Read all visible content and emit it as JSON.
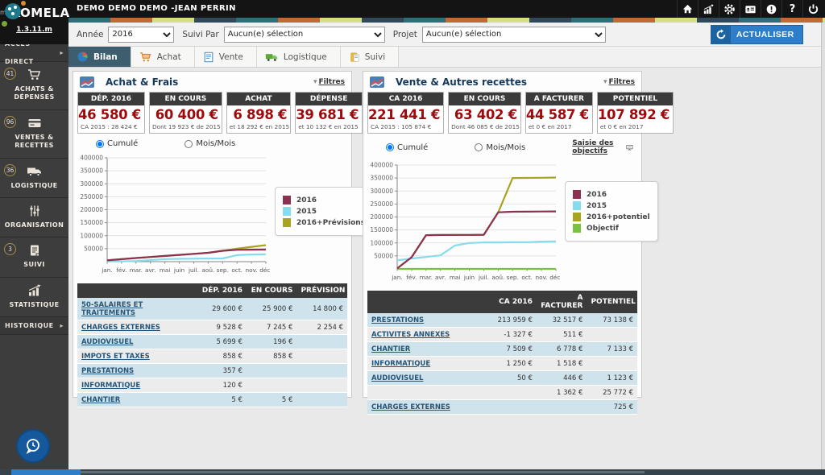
{
  "topbar": {
    "title": "DEMO DEMO DEMO -JEAN PERRIN",
    "icons": [
      "home",
      "stats",
      "settings",
      "account-card",
      "alerts",
      "help",
      "power"
    ]
  },
  "branding": {
    "app_prefix": "my",
    "app_name": "KOMELA",
    "version": "1.3.11.m"
  },
  "sidebar": {
    "access_direct": "ACCÈS DIRECT",
    "historique": "HISTORIQUE",
    "items": [
      {
        "badge": "41",
        "icon": "cart-icon",
        "label": "ACHATS &\nDÉPENSES"
      },
      {
        "badge": "96",
        "icon": "card-icon",
        "label": "VENTES &\nRECETTES"
      },
      {
        "badge": "36",
        "icon": "truck-icon",
        "label": "LOGISTIQUE"
      },
      {
        "badge": "",
        "icon": "sliders-icon",
        "label": "ORGANISATION"
      },
      {
        "badge": "3",
        "icon": "clipboard-icon",
        "label": "SUIVI"
      },
      {
        "badge": "",
        "icon": "bar-chart-icon",
        "label": "STATISTIQUE"
      }
    ]
  },
  "filters": {
    "annee_label": "Année",
    "annee_value": "2016",
    "suivi_label": "Suivi Par",
    "suivi_value": "Aucun(e) sélection",
    "projet_label": "Projet",
    "projet_value": "Aucun(e) sélection",
    "refresh_label": "ACTUALISER"
  },
  "tabs": [
    {
      "label": "Bilan"
    },
    {
      "label": "Achat"
    },
    {
      "label": "Vente"
    },
    {
      "label": "Logistique"
    },
    {
      "label": "Suivi"
    }
  ],
  "panels": {
    "left": {
      "title": "Achat & Frais",
      "filtres_label": "Filtres",
      "radio_cumule": "Cumulé",
      "radio_mois": "Mois/Mois",
      "kpis": [
        {
          "header": "DÉP. 2016",
          "value": "46 580 €",
          "sub": "CA 2015 : 28 424 €"
        },
        {
          "header": "EN COURS",
          "value": "60 400 €",
          "sub": "Dont 19 923 € de 2015"
        },
        {
          "header": "ACHAT",
          "value": "6 898 €",
          "sub": "et 18 292 € en 2015"
        },
        {
          "header": "DÉPENSE",
          "value": "39 681 €",
          "sub": "et 10 132 € en 2015"
        }
      ],
      "table": {
        "headers": [
          "",
          "DÉP. 2016",
          "EN COURS",
          "PRÉVISION"
        ],
        "rows": [
          [
            "50-SALAIRES ET TRAITEMENTS",
            "29 600 €",
            "25 900 €",
            "14 800 €"
          ],
          [
            "CHARGES EXTERNES",
            "9 528 €",
            "7 245 €",
            "2 254 €"
          ],
          [
            "AUDIOVISUEL",
            "5 699 €",
            "196 €",
            ""
          ],
          [
            "IMPOTS ET TAXES",
            "858 €",
            "858 €",
            ""
          ],
          [
            "PRESTATIONS",
            "357 €",
            "",
            ""
          ],
          [
            "INFORMATIQUE",
            "120 €",
            "",
            ""
          ],
          [
            "CHANTIER",
            "5 €",
            "5 €",
            ""
          ]
        ]
      }
    },
    "right": {
      "title": "Vente & Autres recettes",
      "filtres_label": "Filtres",
      "radio_cumule": "Cumulé",
      "radio_mois": "Mois/Mois",
      "objectifs_link": "Saisie des objectifs",
      "kpis": [
        {
          "header": "CA 2016",
          "value": "221 441 €",
          "sub": "CA 2015 : 105 874 €"
        },
        {
          "header": "EN COURS",
          "value": "63 402 €",
          "sub": "Dont 46 085 € de 2015"
        },
        {
          "header": "A FACTURER",
          "value": "44 587 €",
          "sub": "et 0 € en 2017"
        },
        {
          "header": "POTENTIEL",
          "value": "107 892 €",
          "sub": "et 0 € en 2017"
        }
      ],
      "table": {
        "headers": [
          "",
          "CA 2016",
          "A FACTURER",
          "POTENTIEL"
        ],
        "rows": [
          [
            "PRESTATIONS",
            "213 959 €",
            "32 517 €",
            "73 138 €"
          ],
          [
            "ACTIVITES ANNEXES",
            "-1 327 €",
            "511 €",
            ""
          ],
          [
            "CHANTIER",
            "7 509 €",
            "6 778 €",
            "7 133 €"
          ],
          [
            "INFORMATIQUE",
            "1 250 €",
            "1 518 €",
            ""
          ],
          [
            "AUDIOVISUEL",
            "50 €",
            "446 €",
            "1 123 €"
          ],
          [
            "",
            "",
            "1 362 €",
            "25 772 €"
          ],
          [
            "CHARGES EXTERNES",
            "",
            "",
            "725 €"
          ]
        ]
      }
    }
  },
  "chart_data": [
    {
      "type": "line",
      "title": "Achat & Frais — Cumulé 2016",
      "x": [
        "jan.",
        "fév.",
        "mar.",
        "avr.",
        "mai",
        "juin",
        "juil.",
        "aoû.",
        "sep.",
        "oct.",
        "nov.",
        "déc."
      ],
      "ylim": [
        0,
        400000
      ],
      "yticks": [
        50000,
        100000,
        150000,
        200000,
        250000,
        300000,
        350000,
        400000
      ],
      "grid": true,
      "legend_position": "right",
      "series": [
        {
          "name": "2016",
          "color": "#8d3150",
          "values": [
            5000,
            9500,
            14000,
            18000,
            22000,
            26000,
            30000,
            34000,
            42000,
            45500,
            46200,
            46580
          ]
        },
        {
          "name": "2015",
          "color": "#85dcec",
          "values": [
            800,
            1200,
            2500,
            6000,
            10000,
            11000,
            11500,
            12000,
            12500,
            25000,
            27500,
            28424
          ]
        },
        {
          "name": "2016+Prévisions",
          "color": "#a8a422",
          "values": [
            5000,
            9500,
            14000,
            18000,
            22000,
            26000,
            30000,
            34000,
            42000,
            50000,
            57000,
            63600
          ]
        }
      ]
    },
    {
      "type": "line",
      "title": "Vente & Autres recettes — Cumulé 2016",
      "x": [
        "jan.",
        "fév.",
        "mar.",
        "avr.",
        "mai",
        "juin",
        "juil.",
        "aoû.",
        "sep.",
        "oct.",
        "nov.",
        "déc."
      ],
      "ylim": [
        0,
        400000
      ],
      "yticks": [
        50000,
        100000,
        150000,
        200000,
        250000,
        300000,
        350000,
        400000
      ],
      "grid": true,
      "legend_position": "right",
      "series": [
        {
          "name": "2016",
          "color": "#8d3150",
          "values": [
            2000,
            45000,
            130000,
            130500,
            131000,
            131000,
            131500,
            218000,
            220000,
            220500,
            221000,
            221441
          ]
        },
        {
          "name": "2015",
          "color": "#85dcec",
          "values": [
            33000,
            40000,
            46000,
            52000,
            90000,
            100000,
            102000,
            102000,
            102500,
            103000,
            105000,
            105874
          ]
        },
        {
          "name": "2016+potentiel",
          "color": "#a8a422",
          "values": [
            2000,
            45000,
            130000,
            130500,
            131000,
            131000,
            131500,
            218000,
            350000,
            350500,
            351000,
            352000
          ]
        },
        {
          "name": "Objectif",
          "color": "#79c143",
          "values": [
            0,
            0,
            0,
            0,
            0,
            0,
            0,
            0,
            0,
            0,
            0,
            0
          ]
        }
      ]
    }
  ]
}
